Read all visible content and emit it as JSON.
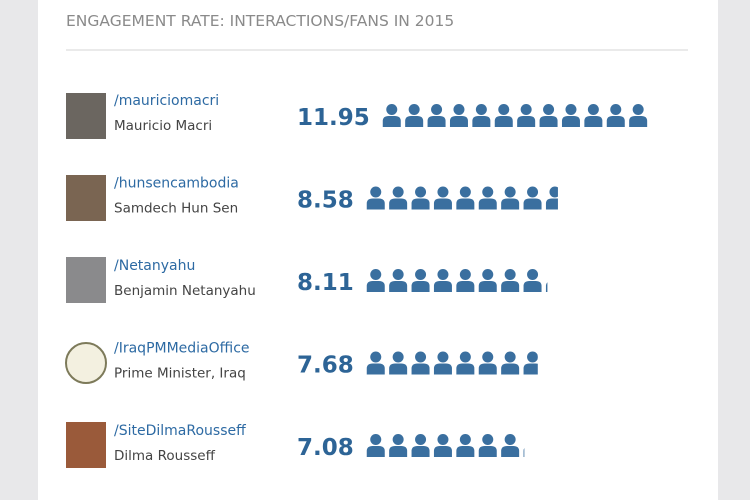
{
  "chart_data": {
    "type": "pictogram",
    "title": "ENGAGEMENT RATE: INTERACTIONS/FANS IN 2015",
    "categories": [
      "/mauriciomacri",
      "/hunsencambodia",
      "/Netanyahu",
      "/IraqPMMediaOffice",
      "/SiteDilmaRousseff"
    ],
    "labels": [
      "Mauricio Macri",
      "Samdech Hun Sen",
      "Benjamin Netanyahu",
      "Prime Minister, Iraq",
      "Dilma Rousseff"
    ],
    "values": [
      11.95,
      8.58,
      8.11,
      7.68,
      7.08
    ],
    "color": "#3a6f9f"
  }
}
